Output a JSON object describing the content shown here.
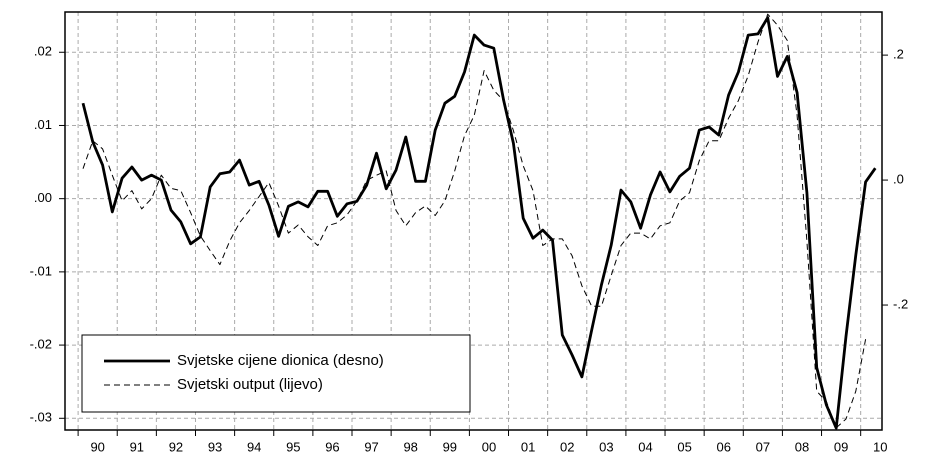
{
  "chart_data": {
    "type": "line",
    "x": [
      1990,
      1990.25,
      1990.5,
      1990.75,
      1991,
      1991.25,
      1991.5,
      1991.75,
      1992,
      1992.25,
      1992.5,
      1992.75,
      1993,
      1993.25,
      1993.5,
      1993.75,
      1994,
      1994.25,
      1994.5,
      1994.75,
      1995,
      1995.25,
      1995.5,
      1995.75,
      1996,
      1996.25,
      1996.5,
      1996.75,
      1997,
      1997.25,
      1997.5,
      1997.75,
      1998,
      1998.25,
      1998.5,
      1998.75,
      1999,
      1999.25,
      1999.5,
      1999.75,
      2000,
      2000.25,
      2000.5,
      2000.75,
      2001,
      2001.25,
      2001.5,
      2001.75,
      2002,
      2002.25,
      2002.5,
      2002.75,
      2003,
      2003.25,
      2003.5,
      2003.75,
      2004,
      2004.25,
      2004.5,
      2004.75,
      2005,
      2005.25,
      2005.5,
      2005.75,
      2006,
      2006.25,
      2006.5,
      2006.75,
      2007,
      2007.25,
      2007.5,
      2007.75,
      2008,
      2008.25,
      2008.5,
      2008.75,
      2009,
      2009.25,
      2009.5,
      2009.75,
      2010,
      2010.25
    ],
    "series": [
      {
        "name": "Svjetske cijene dionica (desno)",
        "color": "#000000",
        "line_style": "solid",
        "axis": "y2",
        "values": [
          0.123,
          0.061,
          0.024,
          -0.051,
          0.003,
          0.021,
          0.0,
          0.008,
          0.0,
          -0.048,
          -0.067,
          -0.102,
          -0.091,
          -0.011,
          0.01,
          0.013,
          0.032,
          -0.008,
          -0.002,
          -0.04,
          -0.09,
          -0.042,
          -0.035,
          -0.043,
          -0.018,
          -0.018,
          -0.058,
          -0.038,
          -0.034,
          -0.008,
          0.043,
          -0.014,
          0.016,
          0.069,
          -0.002,
          -0.002,
          0.08,
          0.123,
          0.134,
          0.173,
          0.232,
          0.216,
          0.211,
          0.128,
          0.059,
          -0.061,
          -0.093,
          -0.08,
          -0.096,
          -0.248,
          -0.28,
          -0.315,
          -0.24,
          -0.168,
          -0.104,
          -0.016,
          -0.035,
          -0.077,
          -0.024,
          0.013,
          -0.019,
          0.006,
          0.019,
          0.08,
          0.085,
          0.072,
          0.136,
          0.173,
          0.232,
          0.234,
          0.26,
          0.166,
          0.198,
          0.14,
          -0.02,
          -0.3,
          -0.36,
          -0.397,
          -0.25,
          -0.12,
          -0.003,
          0.019
        ]
      },
      {
        "name": "Svjetski output (lijevo)",
        "color": "#000000",
        "line_style": "dashed",
        "axis": "y",
        "values": [
          0.0041,
          0.0079,
          0.0068,
          0.0032,
          -0.0003,
          0.0011,
          -0.0014,
          0.0,
          0.0032,
          0.0014,
          0.0011,
          -0.0019,
          -0.0051,
          -0.0071,
          -0.009,
          -0.0058,
          -0.0033,
          -0.0016,
          0.0003,
          0.0022,
          -0.001,
          -0.0047,
          -0.0036,
          -0.0052,
          -0.0064,
          -0.0037,
          -0.0033,
          -0.0022,
          -0.0003,
          0.0025,
          0.0032,
          0.0038,
          -0.0016,
          -0.0037,
          -0.0019,
          -0.001,
          -0.0023,
          -0.0003,
          0.0038,
          0.0086,
          0.0114,
          0.0175,
          0.0148,
          0.0134,
          0.0093,
          0.0045,
          0.0011,
          -0.0064,
          -0.0055,
          -0.0055,
          -0.0078,
          -0.0119,
          -0.0147,
          -0.0147,
          -0.0105,
          -0.0064,
          -0.0047,
          -0.0047,
          -0.0055,
          -0.0037,
          -0.0033,
          -0.0003,
          0.0008,
          0.0052,
          0.0079,
          0.0079,
          0.011,
          0.0134,
          0.0168,
          0.0214,
          0.0252,
          0.0237,
          0.0216,
          0.0114,
          -0.0058,
          -0.0263,
          -0.0277,
          -0.0313,
          -0.0301,
          -0.0263,
          -0.0192,
          null
        ]
      }
    ],
    "xlim": [
      1989.54,
      2010.42
    ],
    "xticks": [
      {
        "value": 1990.375,
        "label": "90"
      },
      {
        "value": 1991.375,
        "label": "91"
      },
      {
        "value": 1992.375,
        "label": "92"
      },
      {
        "value": 1993.375,
        "label": "93"
      },
      {
        "value": 1994.375,
        "label": "94"
      },
      {
        "value": 1995.375,
        "label": "95"
      },
      {
        "value": 1996.375,
        "label": "96"
      },
      {
        "value": 1997.375,
        "label": "97"
      },
      {
        "value": 1998.375,
        "label": "98"
      },
      {
        "value": 1999.375,
        "label": "99"
      },
      {
        "value": 2000.375,
        "label": "00"
      },
      {
        "value": 2001.375,
        "label": "01"
      },
      {
        "value": 2002.375,
        "label": "02"
      },
      {
        "value": 2003.375,
        "label": "03"
      },
      {
        "value": 2004.375,
        "label": "04"
      },
      {
        "value": 2005.375,
        "label": "05"
      },
      {
        "value": 2006.375,
        "label": "06"
      },
      {
        "value": 2007.375,
        "label": "07"
      },
      {
        "value": 2008.375,
        "label": "08"
      },
      {
        "value": 2009.375,
        "label": "09"
      },
      {
        "value": 2010.375,
        "label": "10"
      }
    ],
    "ylim": [
      -0.0316,
      0.0255
    ],
    "yticks": [
      {
        "value": 0.02,
        "label": ".02"
      },
      {
        "value": 0.01,
        "label": ".01"
      },
      {
        "value": 0,
        "label": ".00"
      },
      {
        "value": -0.01,
        "label": "-.01"
      },
      {
        "value": -0.02,
        "label": "-.02"
      },
      {
        "value": -0.03,
        "label": "-.03"
      }
    ],
    "y2lim": [
      -0.4,
      0.269
    ],
    "y2ticks": [
      {
        "value": 0.2,
        "label": ".2"
      },
      {
        "value": 0,
        "label": ".0"
      },
      {
        "value": -0.2,
        "label": "-.2"
      }
    ],
    "grid": true,
    "legend": "lower left"
  }
}
